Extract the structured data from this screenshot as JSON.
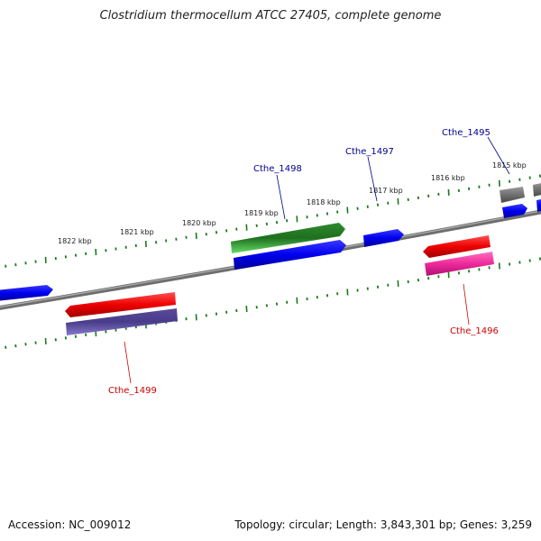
{
  "title": "Clostridium thermocellum ATCC 27405, complete genome",
  "footer": {
    "accession": "Accession: NC_009012",
    "summary": "Topology: circular; Length: 3,843,301 bp; Genes: 3,259"
  },
  "colors": {
    "backbone": "#808080",
    "ticks": "#1a7a1a",
    "forward_label": "#00008b",
    "reverse_label": "#cc0000"
  },
  "ticks": [
    {
      "label": "1822 kbp"
    },
    {
      "label": "1821 kbp"
    },
    {
      "label": "1820 kbp"
    },
    {
      "label": "1819 kbp"
    },
    {
      "label": "1818 kbp"
    },
    {
      "label": "1817 kbp"
    },
    {
      "label": "1816 kbp"
    },
    {
      "label": "1815 kbp"
    }
  ],
  "gene_labels": [
    {
      "text": "Cthe_1498",
      "strand": "forward"
    },
    {
      "text": "Cthe_1497",
      "strand": "forward"
    },
    {
      "text": "Cthe_1495",
      "strand": "forward"
    },
    {
      "text": "Cthe_1496",
      "strand": "reverse"
    },
    {
      "text": "Cthe_1499",
      "strand": "reverse"
    }
  ]
}
